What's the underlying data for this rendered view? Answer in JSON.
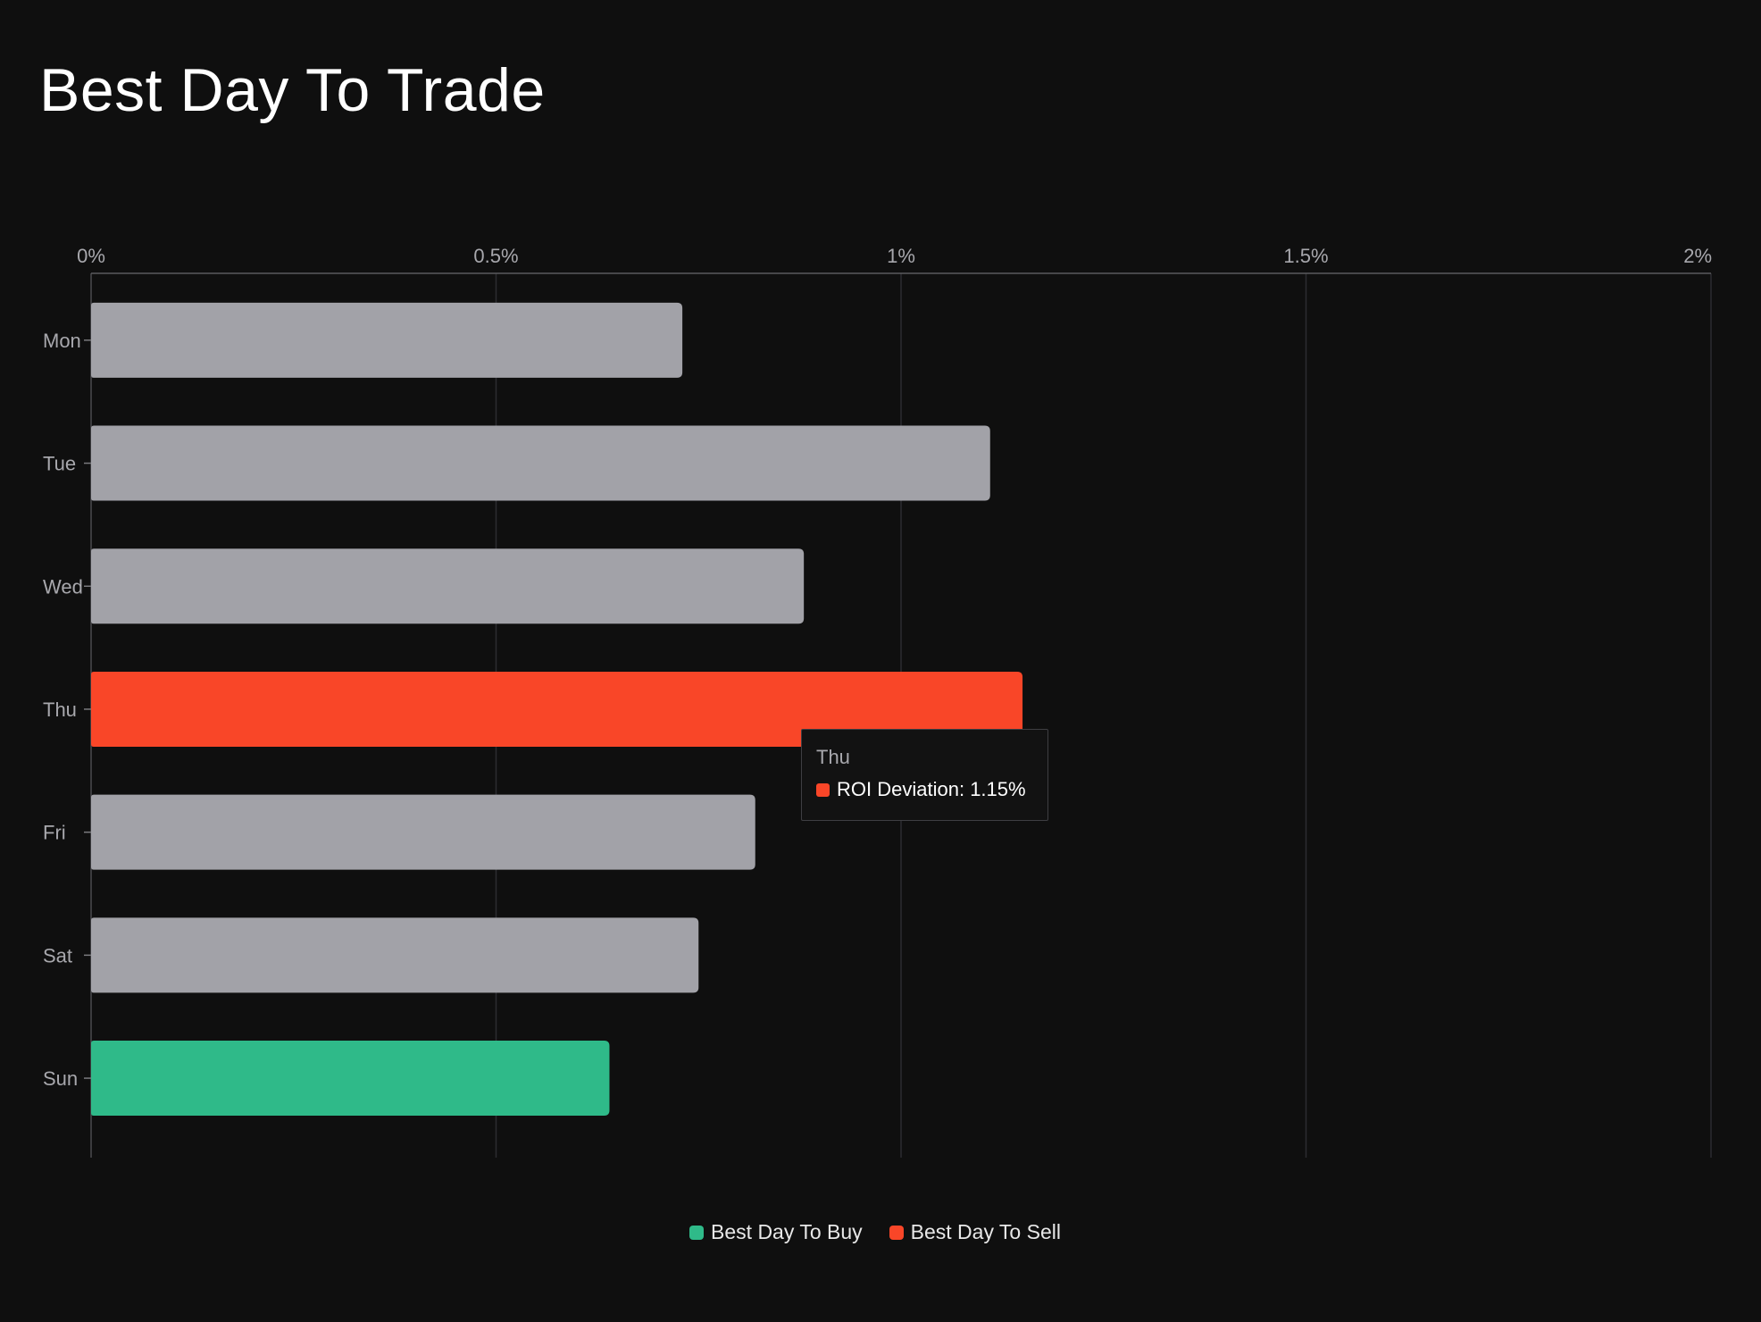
{
  "page": {
    "background": "#0f0f0f"
  },
  "chart_data": {
    "type": "bar",
    "orientation": "horizontal",
    "title": "Best Day To Trade",
    "categories": [
      "Mon",
      "Tue",
      "Wed",
      "Thu",
      "Fri",
      "Sat",
      "Sun"
    ],
    "values": [
      0.73,
      1.11,
      0.88,
      1.15,
      0.82,
      0.75,
      0.64
    ],
    "bar_colors": [
      "#a2a2a8",
      "#a2a2a8",
      "#a2a2a8",
      "#f94628",
      "#a2a2a8",
      "#a2a2a8",
      "#2fba89"
    ],
    "xlim": [
      0,
      2
    ],
    "x_ticks": [
      0,
      0.5,
      1,
      1.5,
      2
    ],
    "x_tick_labels": [
      "0%",
      "0.5%",
      "1%",
      "1.5%",
      "2%"
    ],
    "x_axis_position": "top",
    "grid": true,
    "legend": {
      "placement": "bottom-center",
      "items": [
        {
          "label": "Best Day To Buy",
          "color": "#2fba89"
        },
        {
          "label": "Best Day To Sell",
          "color": "#f94628"
        }
      ]
    },
    "tooltip": {
      "category": "Thu",
      "label": "ROI Deviation",
      "value": "1.15%",
      "color": "#f94628"
    }
  }
}
